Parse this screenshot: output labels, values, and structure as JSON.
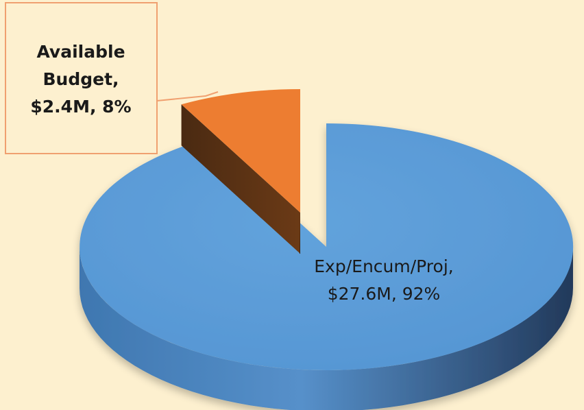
{
  "chart_data": {
    "type": "pie",
    "style": "3d-exploded",
    "title": "",
    "slices": [
      {
        "label": "Exp/Encum/Proj",
        "value": 27.6,
        "value_text": "$27.6M",
        "percent": 92,
        "percent_text": "92%",
        "color": "#5b9bd5"
      },
      {
        "label": "Available Budget",
        "value": 2.4,
        "value_text": "$2.4M",
        "percent": 8,
        "percent_text": "8%",
        "color": "#ed7d31"
      }
    ],
    "data_labels": [
      {
        "lines": [
          "Exp/Encum/Proj,",
          "$27.6M, 92%"
        ]
      },
      {
        "lines": [
          "Available",
          "Budget,",
          "$2.4M, 8%"
        ]
      }
    ],
    "legend": "none",
    "background": "#fdf0cf"
  }
}
